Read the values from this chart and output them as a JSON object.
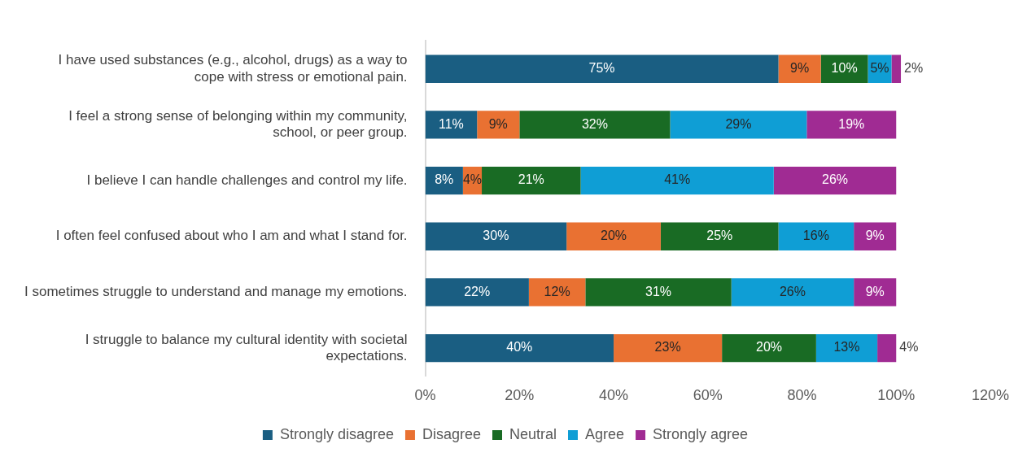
{
  "chart_data": {
    "type": "bar",
    "orientation": "horizontal",
    "stacked": true,
    "categories": [
      "I have used substances (e.g., alcohol, drugs) as a way to cope with stress or emotional pain.",
      "I feel a strong sense of belonging within my community, school, or peer group.",
      "I believe I can handle challenges and control my life.",
      "I often feel confused about who I am and what I stand for.",
      "I sometimes struggle to understand and manage my emotions.",
      "I struggle to balance my cultural identity with societal expectations."
    ],
    "series": [
      {
        "name": "Strongly disagree",
        "color": "#1a5e82",
        "values": [
          75,
          11,
          8,
          30,
          22,
          40
        ],
        "value_labels": [
          "75%",
          "11%",
          "8%",
          "30%",
          "22%",
          "40%"
        ]
      },
      {
        "name": "Disagree",
        "color": "#e97132",
        "values": [
          9,
          9,
          4,
          20,
          12,
          23
        ],
        "value_labels": [
          "9%",
          "9%",
          "4%",
          "20%",
          "12%",
          "23%"
        ]
      },
      {
        "name": "Neutral",
        "color": "#196b24",
        "values": [
          10,
          32,
          21,
          25,
          31,
          20
        ],
        "value_labels": [
          "10%",
          "32%",
          "21%",
          "25%",
          "31%",
          "20%"
        ]
      },
      {
        "name": "Agree",
        "color": "#0f9ed5",
        "values": [
          5,
          29,
          41,
          16,
          26,
          13
        ],
        "value_labels": [
          "5%",
          "29%",
          "41%",
          "16%",
          "26%",
          "13%"
        ]
      },
      {
        "name": "Strongly agree",
        "color": "#a02b93",
        "values": [
          2,
          19,
          26,
          9,
          9,
          4
        ],
        "value_labels": [
          "2%",
          "19%",
          "26%",
          "9%",
          "9%",
          "4%"
        ]
      }
    ],
    "xlim": [
      0,
      120
    ],
    "xticks": [
      {
        "value": 0,
        "label": "0%"
      },
      {
        "value": 20,
        "label": "20%"
      },
      {
        "value": 40,
        "label": "40%"
      },
      {
        "value": 60,
        "label": "60%"
      },
      {
        "value": 80,
        "label": "80%"
      },
      {
        "value": 100,
        "label": "100%"
      },
      {
        "value": 120,
        "label": "120%"
      }
    ],
    "legend": "bottom",
    "grid": false
  }
}
